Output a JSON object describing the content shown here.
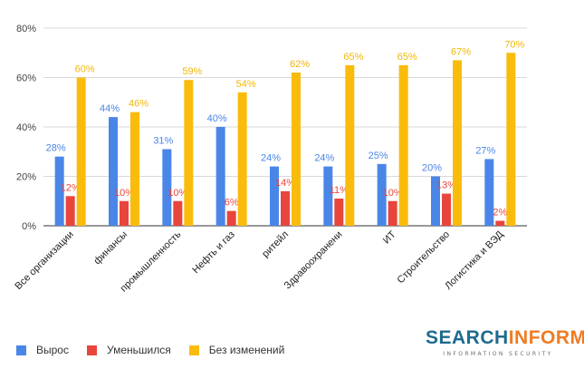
{
  "chart_data": {
    "type": "bar",
    "categories": [
      "Все организации",
      "финансы",
      "промышленность",
      "Нефть и газ",
      "ритейл",
      "Здравоохранени",
      "ИТ",
      "Строительство",
      "Логистика и ВЭД"
    ],
    "series": [
      {
        "name": "Вырос",
        "color": "#4a86e8",
        "label_color": "#4a86e8",
        "values": [
          28,
          44,
          31,
          40,
          24,
          24,
          25,
          20,
          27
        ]
      },
      {
        "name": "Уменьшился",
        "color": "#e8453c",
        "label_color": "#e8453c",
        "values": [
          12,
          10,
          10,
          6,
          14,
          11,
          10,
          13,
          2
        ]
      },
      {
        "name": "Без изменений",
        "color": "#f9bc0d",
        "label_color": "#f2b705",
        "values": [
          60,
          46,
          59,
          54,
          62,
          65,
          65,
          67,
          70
        ]
      }
    ],
    "ylim": [
      0,
      80
    ],
    "yticks": [
      0,
      20,
      40,
      60,
      80
    ],
    "ytick_labels": [
      "0%",
      "20%",
      "40%",
      "60%",
      "80%"
    ],
    "value_suffix": "%",
    "grid": true,
    "legend": "bottom-left",
    "title": "",
    "xlabel": "",
    "ylabel": ""
  },
  "logo": {
    "text_part1": "SEARCH",
    "text_part2": "INFORM",
    "tagline": "INFORMATION SECURITY"
  }
}
